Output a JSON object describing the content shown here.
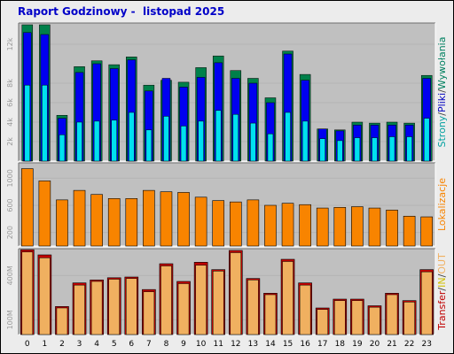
{
  "title": "Raport Godzinowy -  listopad 2025",
  "colors": {
    "background": "#ececec",
    "panel": "#c0c0c0",
    "pages": "#0000f0",
    "files": "#00e0f0",
    "hits": "#00804a",
    "visits": "#f88400",
    "bandwidth": "#f0b060",
    "in": "#d0c000",
    "out": "#c00000"
  },
  "chart_data": [
    {
      "type": "bar",
      "categories": [
        "0",
        "1",
        "2",
        "3",
        "4",
        "5",
        "6",
        "7",
        "8",
        "9",
        "10",
        "11",
        "12",
        "13",
        "14",
        "15",
        "16",
        "17",
        "18",
        "19",
        "20",
        "21",
        "22",
        "23"
      ],
      "ylim": [
        0,
        14000
      ],
      "y_ticks": [
        {
          "value": 2000,
          "label": "2k"
        },
        {
          "value": 4000,
          "label": "4k"
        },
        {
          "value": 6000,
          "label": "6k"
        },
        {
          "value": 8000,
          "label": "8k"
        },
        {
          "value": 12000,
          "label": "12k"
        }
      ],
      "right_label": [
        {
          "text": "Strony",
          "color": "#00a0a0"
        },
        {
          "text": "/",
          "color": "#404040"
        },
        {
          "text": "Pliki",
          "color": "#0000c0"
        },
        {
          "text": "/",
          "color": "#404040"
        },
        {
          "text": "Wywołania",
          "color": "#008060"
        }
      ],
      "series": [
        {
          "name": "Wywołania",
          "values": [
            14000,
            14000,
            4700,
            9700,
            10300,
            9900,
            10700,
            7800,
            8300,
            8100,
            9600,
            10800,
            9300,
            8500,
            6500,
            11300,
            8900,
            3300,
            3200,
            4000,
            3900,
            4000,
            3900,
            8800
          ],
          "color": "#00804a"
        },
        {
          "name": "Pliki",
          "values": [
            13200,
            13000,
            4400,
            9100,
            10000,
            9500,
            10400,
            7200,
            8500,
            7600,
            8600,
            10100,
            8500,
            8000,
            6000,
            11000,
            8300,
            3300,
            3100,
            3700,
            3700,
            3700,
            3700,
            8500
          ],
          "color": "#0000f0"
        },
        {
          "name": "Strony",
          "values": [
            7800,
            7800,
            2700,
            4000,
            4100,
            4200,
            5000,
            3200,
            4600,
            3600,
            4100,
            5200,
            4800,
            3900,
            2800,
            5000,
            4100,
            2300,
            2100,
            2400,
            2400,
            2500,
            2500,
            4400
          ],
          "color": "#00e0f0"
        }
      ]
    },
    {
      "type": "bar",
      "categories": [
        "0",
        "1",
        "2",
        "3",
        "4",
        "5",
        "6",
        "7",
        "8",
        "9",
        "10",
        "11",
        "12",
        "13",
        "14",
        "15",
        "16",
        "17",
        "18",
        "19",
        "20",
        "21",
        "22",
        "23"
      ],
      "ylim": [
        0,
        1200
      ],
      "y_ticks": [
        {
          "value": 200,
          "label": "200"
        },
        {
          "value": 600,
          "label": "600"
        },
        {
          "value": 1000,
          "label": "1000"
        }
      ],
      "right_label": [
        {
          "text": "Lokalizacje",
          "color": "#f88400"
        }
      ],
      "series": [
        {
          "name": "Lokalizacje",
          "values": [
            1140,
            960,
            680,
            820,
            760,
            700,
            700,
            820,
            800,
            790,
            720,
            670,
            650,
            680,
            600,
            630,
            610,
            560,
            570,
            580,
            560,
            530,
            440,
            430
          ],
          "color": "#f88400"
        }
      ]
    },
    {
      "type": "bar",
      "categories": [
        "0",
        "1",
        "2",
        "3",
        "4",
        "5",
        "6",
        "7",
        "8",
        "9",
        "10",
        "11",
        "12",
        "13",
        "14",
        "15",
        "16",
        "17",
        "18",
        "19",
        "20",
        "21",
        "22",
        "23"
      ],
      "ylim": [
        0,
        570
      ],
      "y_ticks": [
        {
          "value": 100,
          "label": "100M"
        },
        {
          "value": 400,
          "label": "400M"
        }
      ],
      "right_label": [
        {
          "text": "Transfer",
          "color": "#c00000"
        },
        {
          "text": "/",
          "color": "#404040"
        },
        {
          "text": "IN",
          "color": "#d0c000"
        },
        {
          "text": "/",
          "color": "#404040"
        },
        {
          "text": "OUT",
          "color": "#f0b060"
        }
      ],
      "series": [
        {
          "name": "Transfer",
          "values": [
            575,
            540,
            190,
            350,
            370,
            385,
            390,
            305,
            480,
            360,
            490,
            440,
            570,
            380,
            280,
            510,
            350,
            180,
            240,
            240,
            195,
            280,
            230,
            440
          ],
          "color": "#c00000"
        },
        {
          "name": "OUT",
          "values": [
            560,
            520,
            180,
            335,
            360,
            375,
            380,
            290,
            465,
            345,
            470,
            430,
            555,
            370,
            270,
            495,
            335,
            170,
            230,
            230,
            185,
            270,
            220,
            425
          ],
          "color": "#f0b060"
        }
      ]
    }
  ]
}
